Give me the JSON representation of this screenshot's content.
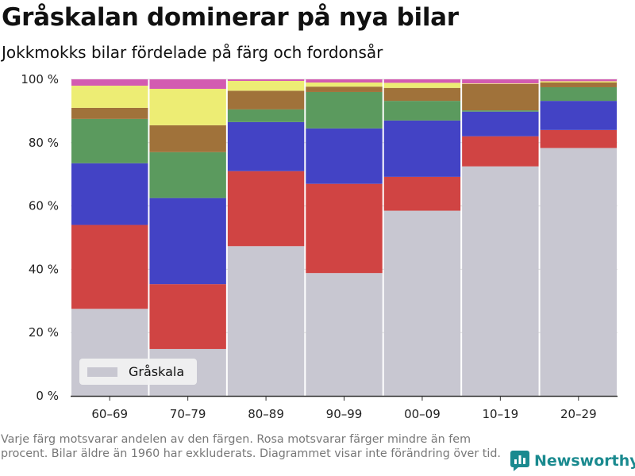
{
  "header": {
    "title": "Gråskalan dominerar på nya bilar",
    "subtitle": "Jokkmokks bilar fördelade på färg och fordonsår"
  },
  "footer": {
    "note": "Varje färg motsvarar andelen av den färgen. Rosa motsvarar färger mindre än fem procent. Bilar äldre än 1960 har exkluderats. Diagrammet visar inte förändring över tid.",
    "brand": "Newsworthy",
    "brand_color": "#1a8a8f"
  },
  "chart_data": {
    "type": "bar",
    "stacked": true,
    "categories": [
      "60–69",
      "70–79",
      "80–89",
      "90–99",
      "00–09",
      "10–19",
      "20–29"
    ],
    "y_tick_labels": [
      "0 %",
      "20 %",
      "40 %",
      "60 %",
      "80 %",
      "100 %"
    ],
    "ylim": [
      0,
      100
    ],
    "grid": "horizontal",
    "legend_placement": "bottom-left",
    "series": [
      {
        "name": "Gråskala",
        "color": "#c8c7d1",
        "values": [
          27.5,
          14.8,
          47.3,
          38.8,
          58.5,
          72.5,
          78.3
        ]
      },
      {
        "color": "#d04443",
        "values": [
          26.5,
          20.5,
          23.7,
          28.2,
          10.7,
          9.5,
          5.7
        ]
      },
      {
        "color": "#4343c5",
        "values": [
          19.5,
          27.2,
          15.5,
          17.5,
          17.8,
          7.8,
          9.2
        ]
      },
      {
        "color": "#5b9a5e",
        "values": [
          14,
          14.5,
          4.0,
          11.5,
          6.2,
          0.4,
          4.3
        ]
      },
      {
        "color": "#a0723a",
        "values": [
          3.5,
          8.5,
          5.9,
          1.7,
          4.1,
          8.3,
          1.5
        ]
      },
      {
        "color": "#eded74",
        "values": [
          7,
          11.5,
          3.1,
          1.3,
          1.6,
          0.2,
          0.4
        ]
      },
      {
        "color": "#d35bb1",
        "values": [
          2,
          3.0,
          0.5,
          1.0,
          1.1,
          1.3,
          0.6
        ]
      }
    ]
  }
}
